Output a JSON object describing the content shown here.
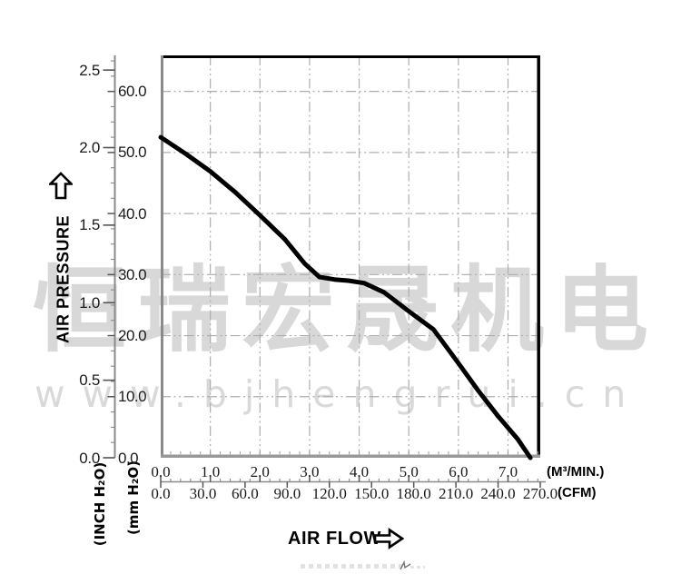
{
  "watermark": {
    "company_cn": "恒瑞宏晟机电",
    "website": "www.bjhengrui.cn"
  },
  "y_axis": {
    "title": "AIR PRESSURE",
    "unit_inch": "(INCH H₂O)",
    "unit_mm": "(mm H₂O)",
    "inch_ticks": {
      "labels": [
        "0.0",
        "0.5",
        "1.0",
        "1.5",
        "2.0",
        "2.5"
      ],
      "values": [
        0,
        0.5,
        1,
        1.5,
        2,
        2.5
      ]
    },
    "mm_ticks": {
      "labels": [
        "0.0",
        "10.0",
        "20.0",
        "30.0",
        "40.0",
        "50.0",
        "60.0"
      ],
      "values": [
        0,
        10,
        20,
        30,
        40,
        50,
        60
      ]
    }
  },
  "x_axis": {
    "title": "AIR FLOW",
    "unit_m3": "(M³/MIN.)",
    "unit_cfm": "(CFM)",
    "m3_ticks": {
      "labels": [
        "0.0",
        "1.0",
        "2.0",
        "3.0",
        "4.0",
        "5.0",
        "6.0",
        "7.0"
      ],
      "values": [
        0,
        1,
        2,
        3,
        4,
        5,
        6,
        7
      ]
    },
    "cfm_ticks": {
      "labels": [
        "0.0",
        "30.0",
        "60.0",
        "90.0",
        "120.0",
        "150.0",
        "180.0",
        "210.0",
        "240.0",
        "270.0"
      ],
      "values": [
        0,
        30,
        60,
        90,
        120,
        150,
        180,
        210,
        240,
        270
      ]
    }
  },
  "chart_data": {
    "type": "line",
    "title": "",
    "xlabel": "AIR FLOW",
    "ylabel": "AIR PRESSURE",
    "x_units": [
      "M³/MIN.",
      "CFM"
    ],
    "y_units": [
      "INCH H₂O",
      "mm H₂O"
    ],
    "xlim_m3_min": [
      0,
      7.65
    ],
    "xlim_cfm": [
      0,
      270
    ],
    "ylim_mm_h2o": [
      0,
      65.9
    ],
    "ylim_inch_h2o": [
      0,
      2.59
    ],
    "grid": true,
    "grid_style": "dash-dot",
    "legend": "none",
    "series": [
      {
        "name": "fan-performance-curve",
        "color": "#000000",
        "x_m3_min": [
          0,
          0.5,
          1.0,
          1.5,
          2.0,
          2.5,
          2.9,
          3.2,
          3.5,
          3.8,
          4.1,
          4.5,
          5.0,
          5.5,
          6.0,
          6.4,
          6.8,
          7.2,
          7.45
        ],
        "y_mm_h2o": [
          52.5,
          49.8,
          46.9,
          43.5,
          39.7,
          35.8,
          31.8,
          29.6,
          29.2,
          29.0,
          28.6,
          27.1,
          24.0,
          21.0,
          15.5,
          11.0,
          6.8,
          3.0,
          0
        ]
      }
    ]
  },
  "colors": {
    "curve": "#000000",
    "grid": "#adadad",
    "axis_gray": "#8a8a8a",
    "border_black": "#000000",
    "watermark": "#d8d8d8"
  }
}
